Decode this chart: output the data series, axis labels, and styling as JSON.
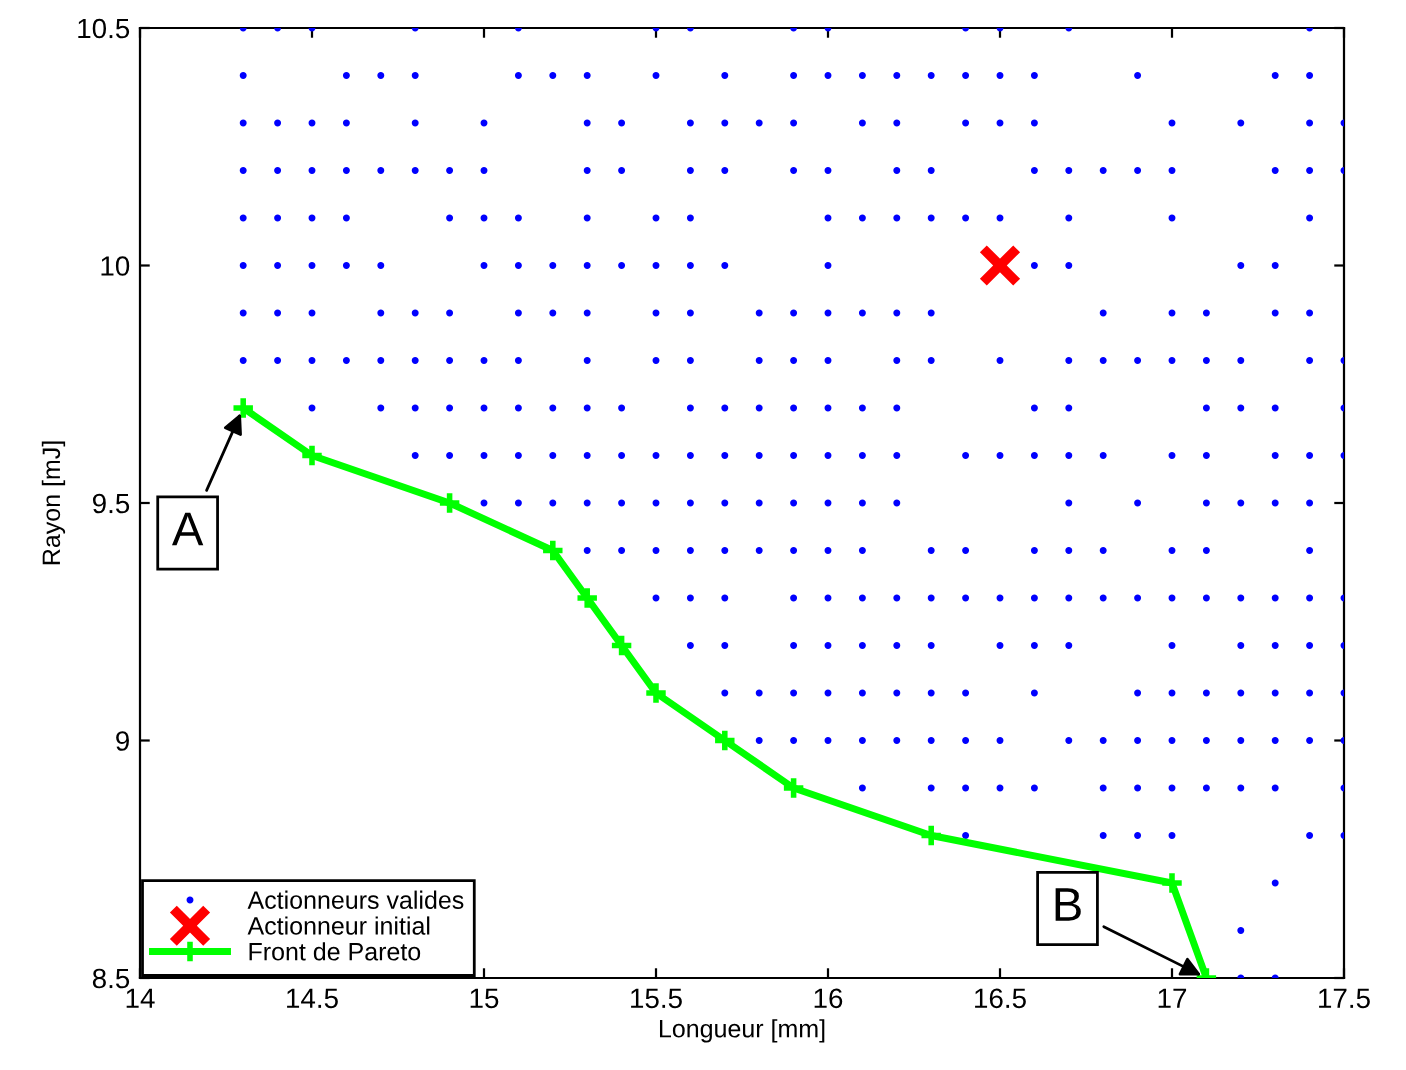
{
  "chart_data": {
    "type": "scatter",
    "xlabel": "Longueur [mm]",
    "ylabel": "Rayon [mJ]",
    "xlim": [
      14,
      17.5
    ],
    "xticks": [
      14,
      14.5,
      15,
      15.5,
      16,
      16.5,
      17,
      17.5
    ],
    "ylim": [
      8.5,
      10.5
    ],
    "yticks": [
      8.5,
      9,
      9.5,
      {
        "value": 10,
        "label": "10"
      },
      10.5
    ],
    "grid": false,
    "legend": "bottom left",
    "annotations": [
      {
        "text": "A",
        "x": 14.3,
        "y": 9.7
      },
      {
        "text": "B",
        "x": 17.1,
        "y": 8.5
      }
    ],
    "series": [
      {
        "name": "Actionneurs valides",
        "marker": "point",
        "color": "#0000ff",
        "x": [
          14.3,
          14.4,
          14.5,
          14.8,
          15.1,
          15.5,
          15.6,
          15.9,
          16.0,
          16.4,
          16.5,
          16.7,
          17.4,
          14.3,
          14.6,
          14.7,
          14.8,
          15.1,
          15.2,
          15.3,
          15.5,
          15.7,
          15.9,
          16.0,
          16.1,
          16.2,
          16.3,
          16.4,
          16.5,
          16.6,
          16.9,
          17.3,
          17.4,
          14.3,
          14.4,
          14.5,
          14.6,
          14.8,
          15.0,
          15.3,
          15.4,
          15.6,
          15.7,
          15.8,
          15.9,
          16.1,
          16.2,
          16.4,
          16.5,
          16.6,
          17.0,
          17.2,
          17.4,
          17.5,
          14.3,
          14.4,
          14.5,
          14.6,
          14.7,
          14.8,
          14.9,
          15.0,
          15.3,
          15.4,
          15.6,
          15.7,
          15.9,
          16.0,
          16.2,
          16.3,
          16.6,
          16.7,
          16.8,
          16.9,
          17.0,
          17.3,
          17.4,
          17.5,
          14.3,
          14.4,
          14.5,
          14.6,
          14.9,
          15.0,
          15.1,
          15.3,
          15.5,
          15.6,
          16.0,
          16.1,
          16.2,
          16.3,
          16.4,
          16.5,
          16.7,
          17.0,
          17.4,
          14.3,
          14.4,
          14.5,
          14.6,
          14.7,
          15.0,
          15.1,
          15.2,
          15.3,
          15.4,
          15.5,
          15.6,
          15.7,
          16.0,
          16.6,
          16.7,
          17.2,
          17.3,
          14.3,
          14.4,
          14.5,
          14.7,
          14.8,
          14.9,
          15.1,
          15.2,
          15.3,
          15.5,
          15.6,
          15.8,
          15.9,
          16.0,
          16.1,
          16.2,
          16.3,
          16.8,
          17.0,
          17.1,
          17.3,
          17.4,
          14.3,
          14.4,
          14.5,
          14.6,
          14.7,
          14.8,
          14.9,
          15.0,
          15.1,
          15.3,
          15.5,
          15.6,
          15.8,
          15.9,
          16.0,
          16.2,
          16.3,
          16.5,
          16.7,
          16.8,
          16.9,
          17.0,
          17.1,
          17.2,
          17.4,
          17.5,
          14.5,
          14.7,
          14.8,
          14.9,
          15.0,
          15.1,
          15.2,
          15.3,
          15.4,
          15.6,
          15.7,
          15.8,
          15.9,
          16.0,
          16.1,
          16.2,
          16.6,
          16.7,
          17.1,
          17.2,
          17.3,
          17.5,
          14.8,
          14.9,
          15.0,
          15.1,
          15.2,
          15.3,
          15.4,
          15.5,
          15.6,
          15.7,
          15.8,
          15.9,
          16.0,
          16.1,
          16.2,
          16.4,
          16.5,
          16.6,
          16.7,
          16.8,
          17.0,
          17.1,
          17.3,
          17.4,
          17.5,
          15.0,
          15.1,
          15.2,
          15.3,
          15.4,
          15.5,
          15.6,
          15.7,
          15.8,
          15.9,
          16.0,
          16.1,
          16.2,
          16.7,
          16.9,
          17.1,
          17.2,
          17.3,
          17.4,
          15.3,
          15.4,
          15.5,
          15.6,
          15.7,
          15.8,
          15.9,
          16.0,
          16.1,
          16.3,
          16.4,
          16.6,
          16.7,
          16.8,
          17.0,
          17.1,
          17.4,
          15.5,
          15.6,
          15.7,
          15.9,
          16.0,
          16.1,
          16.2,
          16.3,
          16.4,
          16.5,
          16.6,
          16.7,
          16.8,
          16.9,
          17.0,
          17.1,
          17.2,
          17.3,
          17.4,
          17.5,
          15.6,
          15.7,
          15.9,
          16.0,
          16.1,
          16.2,
          16.3,
          16.5,
          16.6,
          16.7,
          17.0,
          17.2,
          17.3,
          17.4,
          17.5,
          15.7,
          15.8,
          15.9,
          16.0,
          16.1,
          16.2,
          16.3,
          16.4,
          16.6,
          16.9,
          17.0,
          17.1,
          17.2,
          17.3,
          17.4,
          17.5,
          15.8,
          15.9,
          16.0,
          16.1,
          16.2,
          16.3,
          16.4,
          16.5,
          16.7,
          16.8,
          16.9,
          17.0,
          17.1,
          17.2,
          17.3,
          17.4,
          17.5,
          16.1,
          16.3,
          16.4,
          16.5,
          16.6,
          16.8,
          16.9,
          17.0,
          17.1,
          17.2,
          17.3,
          17.5,
          16.4,
          16.8,
          16.9,
          17.0,
          17.4,
          17.5,
          17.3,
          17.2,
          17.2,
          17.3
        ],
        "values": [
          10.5,
          10.5,
          10.5,
          10.5,
          10.5,
          10.5,
          10.5,
          10.5,
          10.5,
          10.5,
          10.5,
          10.5,
          10.5,
          10.4,
          10.4,
          10.4,
          10.4,
          10.4,
          10.4,
          10.4,
          10.4,
          10.4,
          10.4,
          10.4,
          10.4,
          10.4,
          10.4,
          10.4,
          10.4,
          10.4,
          10.4,
          10.4,
          10.4,
          10.3,
          10.3,
          10.3,
          10.3,
          10.3,
          10.3,
          10.3,
          10.3,
          10.3,
          10.3,
          10.3,
          10.3,
          10.3,
          10.3,
          10.3,
          10.3,
          10.3,
          10.3,
          10.3,
          10.3,
          10.3,
          10.2,
          10.2,
          10.2,
          10.2,
          10.2,
          10.2,
          10.2,
          10.2,
          10.2,
          10.2,
          10.2,
          10.2,
          10.2,
          10.2,
          10.2,
          10.2,
          10.2,
          10.2,
          10.2,
          10.2,
          10.2,
          10.2,
          10.2,
          10.2,
          10.1,
          10.1,
          10.1,
          10.1,
          10.1,
          10.1,
          10.1,
          10.1,
          10.1,
          10.1,
          10.1,
          10.1,
          10.1,
          10.1,
          10.1,
          10.1,
          10.1,
          10.1,
          10.1,
          10.0,
          10.0,
          10.0,
          10.0,
          10.0,
          10.0,
          10.0,
          10.0,
          10.0,
          10.0,
          10.0,
          10.0,
          10.0,
          10.0,
          10.0,
          10.0,
          10.0,
          10.0,
          9.9,
          9.9,
          9.9,
          9.9,
          9.9,
          9.9,
          9.9,
          9.9,
          9.9,
          9.9,
          9.9,
          9.9,
          9.9,
          9.9,
          9.9,
          9.9,
          9.9,
          9.9,
          9.9,
          9.9,
          9.9,
          9.9,
          9.8,
          9.8,
          9.8,
          9.8,
          9.8,
          9.8,
          9.8,
          9.8,
          9.8,
          9.8,
          9.8,
          9.8,
          9.8,
          9.8,
          9.8,
          9.8,
          9.8,
          9.8,
          9.8,
          9.8,
          9.8,
          9.8,
          9.8,
          9.8,
          9.8,
          9.8,
          9.7,
          9.7,
          9.7,
          9.7,
          9.7,
          9.7,
          9.7,
          9.7,
          9.7,
          9.7,
          9.7,
          9.7,
          9.7,
          9.7,
          9.7,
          9.7,
          9.7,
          9.7,
          9.7,
          9.7,
          9.7,
          9.7,
          9.6,
          9.6,
          9.6,
          9.6,
          9.6,
          9.6,
          9.6,
          9.6,
          9.6,
          9.6,
          9.6,
          9.6,
          9.6,
          9.6,
          9.6,
          9.6,
          9.6,
          9.6,
          9.6,
          9.6,
          9.6,
          9.6,
          9.6,
          9.6,
          9.6,
          9.5,
          9.5,
          9.5,
          9.5,
          9.5,
          9.5,
          9.5,
          9.5,
          9.5,
          9.5,
          9.5,
          9.5,
          9.5,
          9.5,
          9.5,
          9.5,
          9.5,
          9.5,
          9.5,
          9.4,
          9.4,
          9.4,
          9.4,
          9.4,
          9.4,
          9.4,
          9.4,
          9.4,
          9.4,
          9.4,
          9.4,
          9.4,
          9.4,
          9.4,
          9.4,
          9.4,
          9.3,
          9.3,
          9.3,
          9.3,
          9.3,
          9.3,
          9.3,
          9.3,
          9.3,
          9.3,
          9.3,
          9.3,
          9.3,
          9.3,
          9.3,
          9.3,
          9.3,
          9.3,
          9.3,
          9.3,
          9.2,
          9.2,
          9.2,
          9.2,
          9.2,
          9.2,
          9.2,
          9.2,
          9.2,
          9.2,
          9.2,
          9.2,
          9.2,
          9.2,
          9.2,
          9.1,
          9.1,
          9.1,
          9.1,
          9.1,
          9.1,
          9.1,
          9.1,
          9.1,
          9.1,
          9.1,
          9.1,
          9.1,
          9.1,
          9.1,
          9.1,
          9.0,
          9.0,
          9.0,
          9.0,
          9.0,
          9.0,
          9.0,
          9.0,
          9.0,
          9.0,
          9.0,
          9.0,
          9.0,
          9.0,
          9.0,
          9.0,
          9.0,
          8.9,
          8.9,
          8.9,
          8.9,
          8.9,
          8.9,
          8.9,
          8.9,
          8.9,
          8.9,
          8.9,
          8.9,
          8.8,
          8.8,
          8.8,
          8.8,
          8.8,
          8.8,
          8.7,
          8.6,
          8.5,
          8.5
        ]
      },
      {
        "name": "Actionneur initial",
        "marker": "cross",
        "color": "#ff0000",
        "x": [
          16.5
        ],
        "values": [
          10.0
        ]
      },
      {
        "name": "Front de Pareto",
        "type": "line",
        "marker": "plus",
        "color": "#00ff00",
        "line_style": "solid",
        "x": [
          14.3,
          14.5,
          14.9,
          15.2,
          15.3,
          15.4,
          15.5,
          15.7,
          15.9,
          16.3,
          17.0,
          17.1
        ],
        "values": [
          9.7,
          9.6,
          9.5,
          9.4,
          9.3,
          9.2,
          9.1,
          9.0,
          8.9,
          8.8,
          8.7,
          8.5
        ]
      }
    ]
  }
}
